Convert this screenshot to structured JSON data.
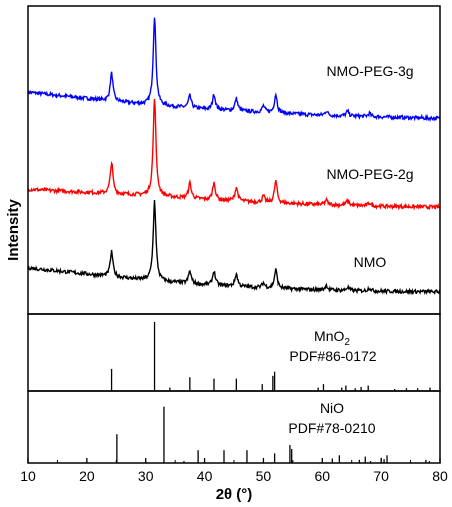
{
  "chart_data": {
    "type": "line",
    "xlabel": "2θ (°)",
    "ylabel": "Intensity",
    "xlim": [
      10,
      80
    ],
    "x_ticks": [
      "10",
      "20",
      "30",
      "40",
      "50",
      "60",
      "70",
      "80"
    ],
    "y_tick_labels_shown": false,
    "grid": false,
    "legend": "none",
    "panels": [
      {
        "name": "main",
        "series": [
          {
            "label": "NMO-PEG-3g",
            "color": "#0000ff",
            "baseline": {
              "x": [
                10,
                20,
                30,
                40,
                50,
                60,
                70,
                80
              ],
              "y": [
                0.72,
                0.7,
                0.68,
                0.665,
                0.655,
                0.645,
                0.64,
                0.635
              ]
            },
            "peaks": [
              {
                "x": 24.2,
                "height": 0.09
              },
              {
                "x": 31.5,
                "height": 0.29
              },
              {
                "x": 37.5,
                "height": 0.04
              },
              {
                "x": 41.6,
                "height": 0.05
              },
              {
                "x": 45.4,
                "height": 0.04
              },
              {
                "x": 50.0,
                "height": 0.02
              },
              {
                "x": 52.1,
                "height": 0.06
              },
              {
                "x": 60.7,
                "height": 0.015
              },
              {
                "x": 64.3,
                "height": 0.015
              },
              {
                "x": 68.0,
                "height": 0.01
              }
            ]
          },
          {
            "label": "NMO-PEG-2g",
            "color": "#ff0000",
            "baseline": {
              "x": [
                10,
                20,
                30,
                40,
                50,
                60,
                70,
                80
              ],
              "y": [
                0.405,
                0.395,
                0.385,
                0.372,
                0.362,
                0.355,
                0.35,
                0.347
              ]
            },
            "peaks": [
              {
                "x": 24.2,
                "height": 0.1
              },
              {
                "x": 31.5,
                "height": 0.32
              },
              {
                "x": 37.5,
                "height": 0.05
              },
              {
                "x": 41.6,
                "height": 0.055
              },
              {
                "x": 45.4,
                "height": 0.045
              },
              {
                "x": 50.0,
                "height": 0.02
              },
              {
                "x": 52.1,
                "height": 0.07
              },
              {
                "x": 60.7,
                "height": 0.015
              },
              {
                "x": 64.3,
                "height": 0.015
              },
              {
                "x": 68.0,
                "height": 0.01
              }
            ]
          },
          {
            "label": "NMO",
            "color": "#000000",
            "baseline": {
              "x": [
                10,
                20,
                30,
                40,
                50,
                60,
                70,
                80
              ],
              "y": [
                0.15,
                0.13,
                0.11,
                0.095,
                0.085,
                0.078,
                0.074,
                0.072
              ]
            },
            "peaks": [
              {
                "x": 24.2,
                "height": 0.08
              },
              {
                "x": 31.5,
                "height": 0.26
              },
              {
                "x": 37.5,
                "height": 0.04
              },
              {
                "x": 41.6,
                "height": 0.045
              },
              {
                "x": 45.4,
                "height": 0.04
              },
              {
                "x": 50.0,
                "height": 0.015
              },
              {
                "x": 52.1,
                "height": 0.06
              },
              {
                "x": 60.7,
                "height": 0.015
              },
              {
                "x": 64.3,
                "height": 0.01
              },
              {
                "x": 68.0,
                "height": 0.01
              }
            ]
          }
        ]
      },
      {
        "name": "reference-mno2",
        "title_main": "MnO",
        "title_sub": "2",
        "card": "PDF#86-0172",
        "sticks": [
          {
            "x": 24.2,
            "y": 0.32
          },
          {
            "x": 31.5,
            "y": 1.0
          },
          {
            "x": 34.1,
            "y": 0.05
          },
          {
            "x": 37.5,
            "y": 0.2
          },
          {
            "x": 41.6,
            "y": 0.18
          },
          {
            "x": 45.4,
            "y": 0.18
          },
          {
            "x": 49.8,
            "y": 0.1
          },
          {
            "x": 51.6,
            "y": 0.22
          },
          {
            "x": 51.9,
            "y": 0.28
          },
          {
            "x": 59.3,
            "y": 0.05
          },
          {
            "x": 60.2,
            "y": 0.1
          },
          {
            "x": 63.3,
            "y": 0.05
          },
          {
            "x": 64.0,
            "y": 0.08
          },
          {
            "x": 65.6,
            "y": 0.04
          },
          {
            "x": 66.6,
            "y": 0.06
          },
          {
            "x": 67.8,
            "y": 0.08
          },
          {
            "x": 72.3,
            "y": 0.03
          },
          {
            "x": 74.3,
            "y": 0.04
          },
          {
            "x": 76.2,
            "y": 0.04
          },
          {
            "x": 78.3,
            "y": 0.05
          }
        ]
      },
      {
        "name": "reference-nio",
        "title_main": "NiO",
        "card": "PDF#78-0210",
        "sticks": [
          {
            "x": 25.1,
            "y": 0.45
          },
          {
            "x": 33.1,
            "y": 0.88
          },
          {
            "x": 36.5,
            "y": 0.03
          },
          {
            "x": 38.9,
            "y": 0.2
          },
          {
            "x": 43.3,
            "y": 0.2
          },
          {
            "x": 47.2,
            "y": 0.2
          },
          {
            "x": 51.9,
            "y": 0.15
          },
          {
            "x": 54.5,
            "y": 0.28
          },
          {
            "x": 54.8,
            "y": 0.22
          },
          {
            "x": 61.7,
            "y": 0.07
          },
          {
            "x": 62.9,
            "y": 0.12
          },
          {
            "x": 66.3,
            "y": 0.05
          },
          {
            "x": 67.3,
            "y": 0.1
          },
          {
            "x": 68.2,
            "y": 0.03
          },
          {
            "x": 70.0,
            "y": 0.08
          },
          {
            "x": 70.5,
            "y": 0.06
          },
          {
            "x": 71.0,
            "y": 0.12
          },
          {
            "x": 77.6,
            "y": 0.05
          },
          {
            "x": 78.2,
            "y": 0.03
          }
        ]
      }
    ]
  }
}
